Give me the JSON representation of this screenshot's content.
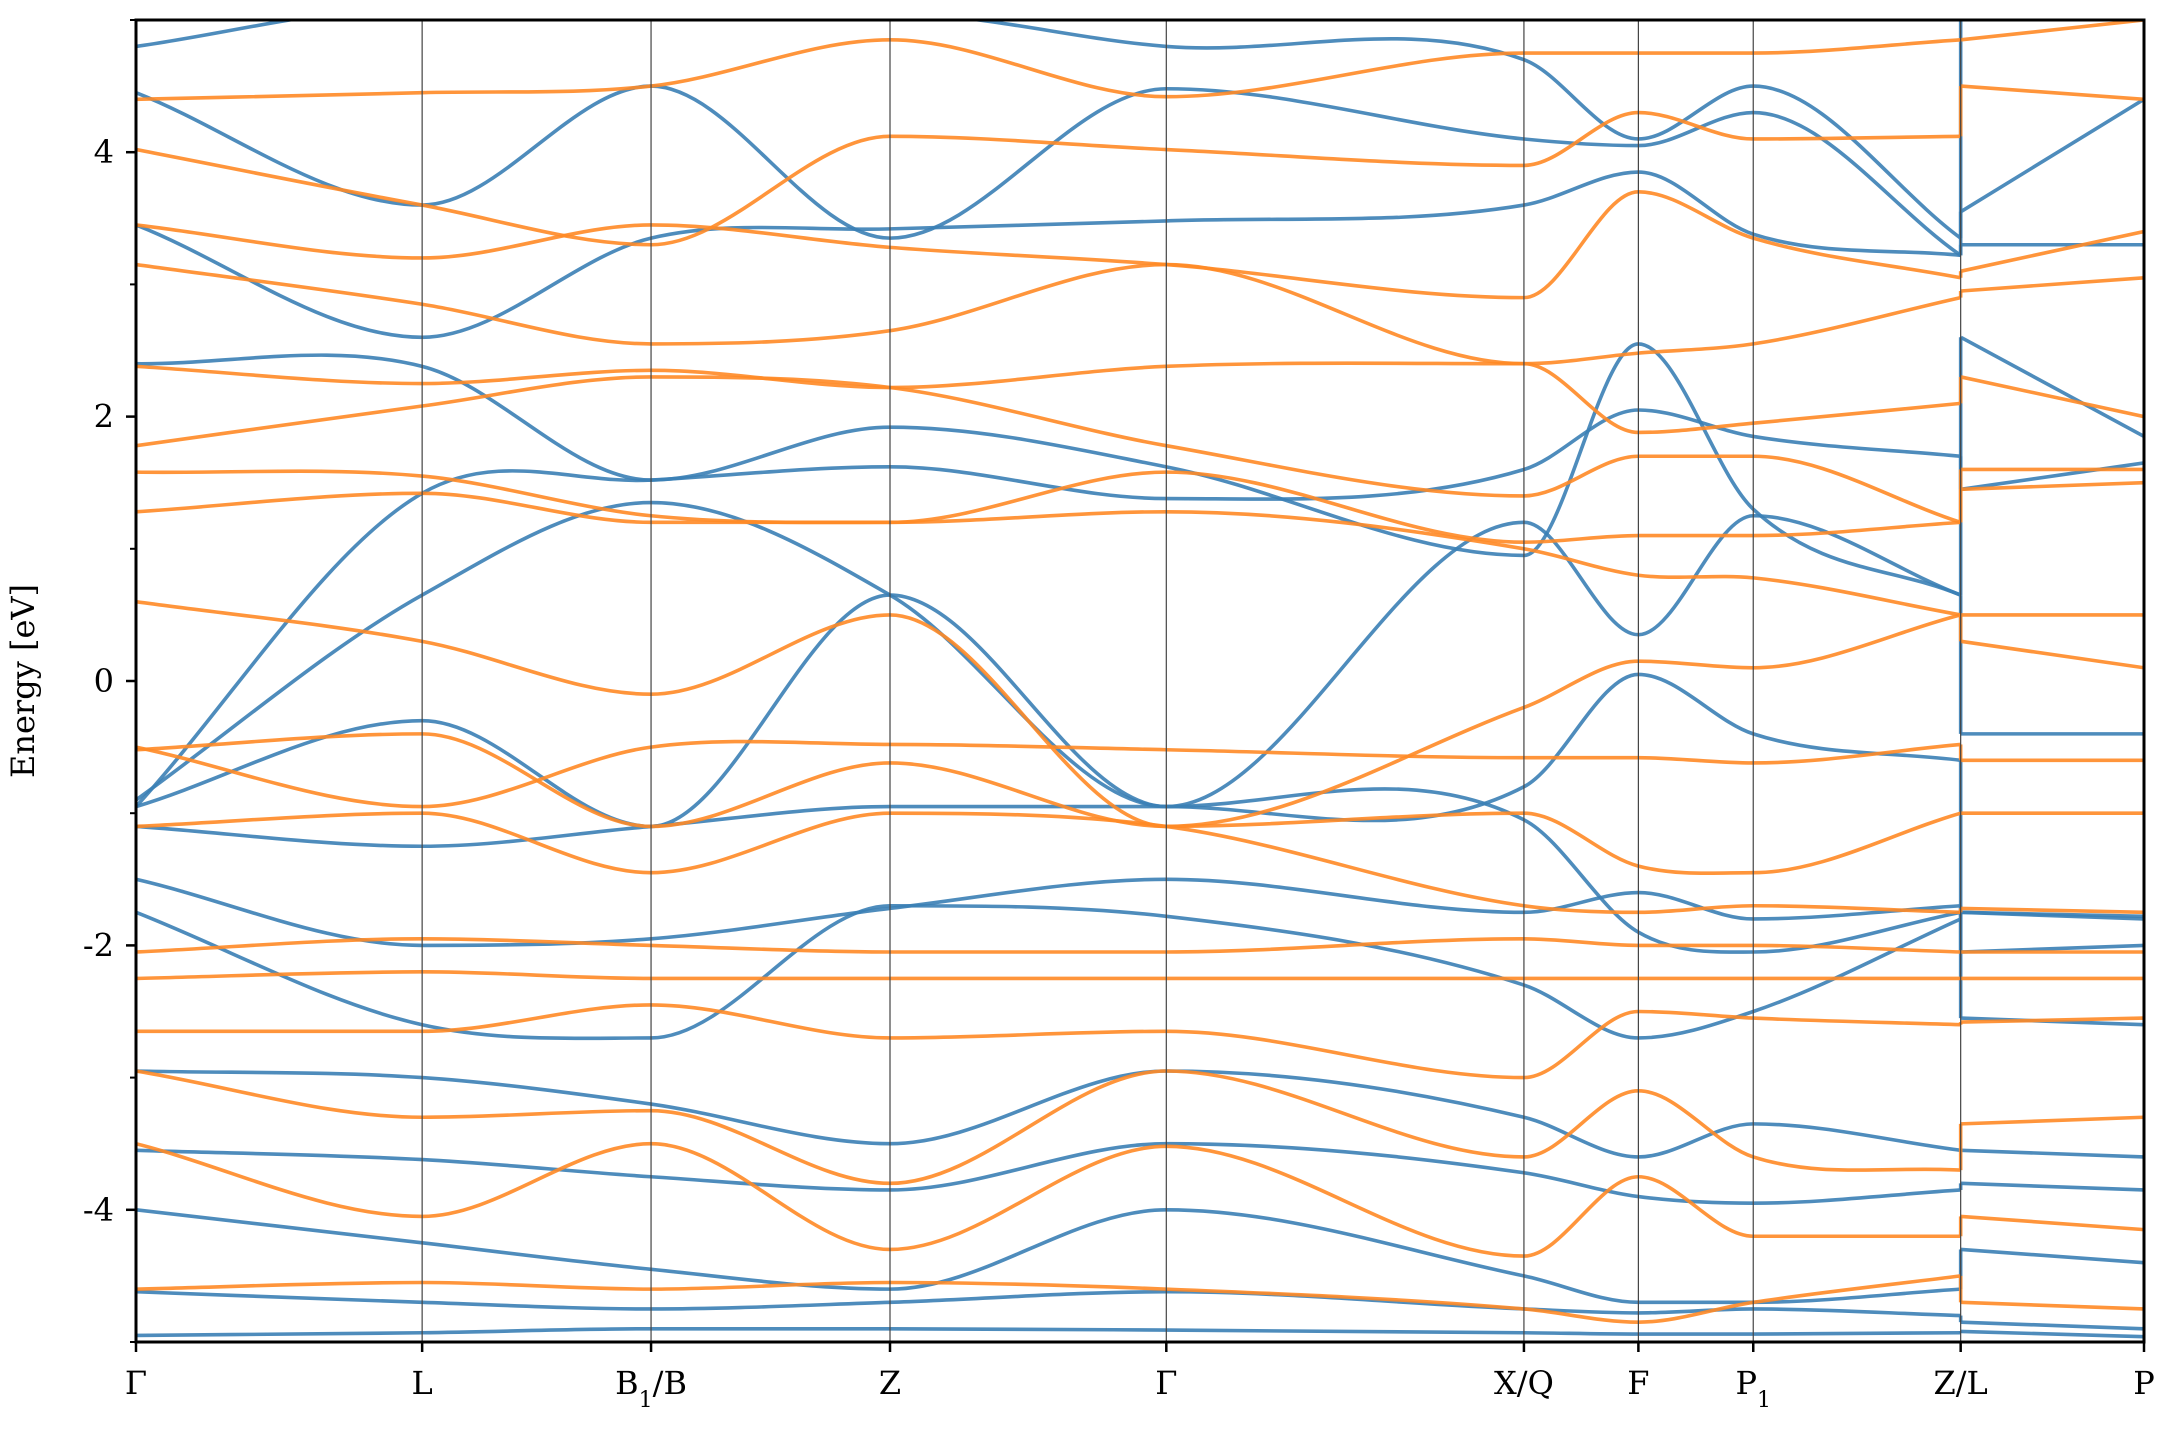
{
  "chart_data": {
    "type": "line",
    "title": "",
    "xlabel": "",
    "ylabel": "Energy [eV]",
    "ylim": [
      -5,
      5
    ],
    "yticks_major": [
      -4,
      -2,
      0,
      2,
      4
    ],
    "yticks_major_labels": [
      "-4",
      "-2",
      "0",
      "2",
      "4"
    ],
    "yticks_minor": [
      -5,
      -3,
      -1,
      1,
      3,
      5
    ],
    "grid": false,
    "legend": "none",
    "high_symmetry_points": [
      {
        "label": "Γ",
        "sub": "",
        "x": 0.0
      },
      {
        "label": "L",
        "sub": "",
        "x": 0.1425
      },
      {
        "label": "B",
        "sub": "1",
        "tail": "/B",
        "x": 0.2565
      },
      {
        "label": "Z",
        "sub": "",
        "x": 0.3755
      },
      {
        "label": "Γ",
        "sub": "",
        "x": 0.5131
      },
      {
        "label": "X/Q",
        "sub": "",
        "x": 0.6912
      },
      {
        "label": "F",
        "sub": "",
        "x": 0.7482
      },
      {
        "label": "P",
        "sub": "1",
        "tail": "",
        "x": 0.8054
      },
      {
        "label": "Z/L",
        "sub": "",
        "x": 0.9087
      },
      {
        "label": "P",
        "sub": "",
        "x": 1.0
      }
    ],
    "series": [
      {
        "color": "#3b7fb5",
        "bands": [
          [
            -4.95,
            -4.93,
            -4.9,
            -4.9,
            -4.91,
            -4.93,
            -4.94,
            -4.94,
            -4.93,
            -4.92,
            -4.96
          ],
          [
            -4.62,
            -4.7,
            -4.75,
            -4.7,
            -4.62,
            -4.75,
            -4.78,
            -4.75,
            -4.8,
            -4.85,
            -4.9
          ],
          [
            -4.0,
            -4.25,
            -4.45,
            -4.6,
            -4.0,
            -4.5,
            -4.7,
            -4.7,
            -4.6,
            -4.3,
            -4.4
          ],
          [
            -3.55,
            -3.62,
            -3.75,
            -3.85,
            -3.5,
            -3.72,
            -3.9,
            -3.95,
            -3.85,
            -3.8,
            -3.85
          ],
          [
            -2.95,
            -3.0,
            -3.2,
            -3.5,
            -2.95,
            -3.3,
            -3.6,
            -3.35,
            -3.55,
            -3.55,
            -3.6
          ],
          [
            -1.75,
            -2.6,
            -2.7,
            -1.7,
            -1.78,
            -2.3,
            -2.7,
            -2.5,
            -1.8,
            -1.75,
            -1.78
          ],
          [
            -1.5,
            -2.0,
            -1.95,
            -1.72,
            -1.5,
            -1.75,
            -1.6,
            -1.8,
            -1.7,
            -2.05,
            -2.0
          ],
          [
            -1.1,
            -1.25,
            -1.1,
            -0.95,
            -0.95,
            -1.05,
            -1.9,
            -2.05,
            -1.75,
            -1.75,
            -1.8
          ],
          [
            -0.95,
            -0.3,
            -1.1,
            0.65,
            -0.95,
            -0.8,
            0.05,
            -0.4,
            -0.6,
            -2.55,
            -2.6
          ],
          [
            -0.9,
            0.65,
            1.35,
            0.65,
            -0.95,
            1.2,
            0.35,
            1.25,
            0.65,
            -0.4,
            -0.4
          ],
          [
            -0.95,
            1.42,
            1.52,
            1.62,
            1.38,
            1.6,
            2.05,
            1.85,
            1.7,
            1.45,
            1.65
          ],
          [
            2.4,
            2.38,
            1.52,
            1.92,
            1.62,
            0.95,
            2.55,
            1.3,
            0.65,
            2.6,
            1.85
          ],
          [
            3.45,
            2.6,
            3.35,
            3.42,
            3.48,
            3.6,
            3.85,
            3.38,
            3.22,
            3.3,
            3.3
          ],
          [
            4.45,
            3.6,
            4.5,
            3.35,
            4.48,
            4.1,
            4.05,
            4.3,
            3.22,
            3.55,
            4.4
          ],
          [
            4.8,
            5.1,
            5.05,
            5.05,
            4.8,
            4.7,
            4.1,
            4.5,
            3.35,
            5.1,
            5.1
          ]
        ]
      },
      {
        "color": "#ff8a26",
        "bands": [
          [
            -4.6,
            -4.55,
            -4.6,
            -4.55,
            -4.6,
            -4.75,
            -4.85,
            -4.7,
            -4.5,
            -4.7,
            -4.75
          ],
          [
            -3.5,
            -4.05,
            -3.5,
            -4.3,
            -3.52,
            -4.35,
            -3.75,
            -4.2,
            -4.2,
            -4.05,
            -4.15
          ],
          [
            -2.95,
            -3.3,
            -3.25,
            -3.8,
            -2.95,
            -3.6,
            -3.1,
            -3.6,
            -3.7,
            -3.35,
            -3.3
          ],
          [
            -2.65,
            -2.65,
            -2.45,
            -2.7,
            -2.65,
            -3.0,
            -2.5,
            -2.55,
            -2.6,
            -2.58,
            -2.55
          ],
          [
            -2.25,
            -2.2,
            -2.25,
            -2.25,
            -2.25,
            -2.25,
            -2.25,
            -2.25,
            -2.25,
            -2.25,
            -2.25
          ],
          [
            -2.05,
            -1.95,
            -2.0,
            -2.05,
            -2.05,
            -1.95,
            -2.0,
            -2.0,
            -2.05,
            -2.05,
            -2.05
          ],
          [
            -1.1,
            -1.0,
            -1.45,
            -1.0,
            -1.1,
            -1.7,
            -1.75,
            -1.7,
            -1.75,
            -1.72,
            -1.75
          ],
          [
            -0.52,
            -0.4,
            -1.1,
            -0.62,
            -1.1,
            -1.0,
            -1.4,
            -1.45,
            -1.0,
            -1.0,
            -1.0
          ],
          [
            -0.5,
            -0.95,
            -0.5,
            -0.48,
            -0.52,
            -0.58,
            -0.58,
            -0.62,
            -0.48,
            -0.6,
            -0.6
          ],
          [
            0.6,
            0.3,
            -0.1,
            0.5,
            -1.1,
            -0.2,
            0.15,
            0.1,
            0.5,
            0.3,
            0.1
          ],
          [
            1.28,
            1.42,
            1.2,
            1.2,
            1.28,
            1.0,
            0.8,
            0.78,
            0.5,
            0.5,
            0.5
          ],
          [
            1.58,
            1.55,
            1.25,
            1.2,
            1.58,
            1.05,
            1.1,
            1.1,
            1.2,
            1.45,
            1.5
          ],
          [
            1.78,
            2.08,
            2.3,
            2.22,
            1.78,
            1.4,
            1.7,
            1.7,
            1.2,
            1.6,
            1.6
          ],
          [
            2.38,
            2.25,
            2.35,
            2.22,
            2.38,
            2.4,
            1.88,
            1.95,
            2.1,
            2.3,
            2.0
          ],
          [
            3.15,
            2.85,
            2.55,
            2.65,
            3.15,
            2.4,
            2.48,
            2.55,
            2.9,
            2.95,
            3.05
          ],
          [
            3.45,
            3.2,
            3.45,
            3.28,
            3.15,
            2.9,
            3.7,
            3.35,
            3.05,
            3.1,
            3.4
          ],
          [
            4.02,
            3.6,
            3.3,
            4.12,
            4.02,
            3.9,
            4.3,
            4.1,
            4.12,
            4.5,
            4.4
          ],
          [
            4.4,
            4.45,
            4.5,
            4.85,
            4.42,
            4.75,
            4.75,
            4.75,
            4.85,
            4.85,
            5.0
          ]
        ]
      }
    ]
  }
}
